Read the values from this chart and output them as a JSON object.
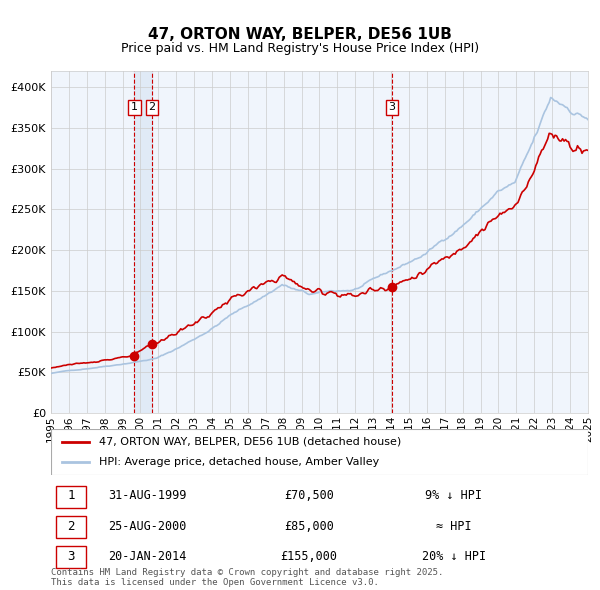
{
  "title1": "47, ORTON WAY, BELPER, DE56 1UB",
  "title2": "Price paid vs. HM Land Registry's House Price Index (HPI)",
  "legend_label1": "47, ORTON WAY, BELPER, DE56 1UB (detached house)",
  "legend_label2": "HPI: Average price, detached house, Amber Valley",
  "sale1_date": "31-AUG-1999",
  "sale1_price": 70500,
  "sale1_note": "9% ↓ HPI",
  "sale2_date": "25-AUG-2000",
  "sale2_price": 85000,
  "sale2_note": "≈ HPI",
  "sale3_date": "20-JAN-2014",
  "sale3_price": 155000,
  "sale3_note": "20% ↓ HPI",
  "footer": "Contains HM Land Registry data © Crown copyright and database right 2025.\nThis data is licensed under the Open Government Licence v3.0.",
  "hpi_color": "#aac4e0",
  "price_color": "#cc0000",
  "vline_color": "#cc0000",
  "vband_color": "#dce8f5",
  "ylim_min": 0,
  "ylim_max": 420000,
  "ylabel_ticks": [
    0,
    50000,
    100000,
    150000,
    200000,
    250000,
    300000,
    350000,
    400000
  ],
  "bg_color": "#f0f5fc",
  "plot_bg_color": "#f0f5fc"
}
